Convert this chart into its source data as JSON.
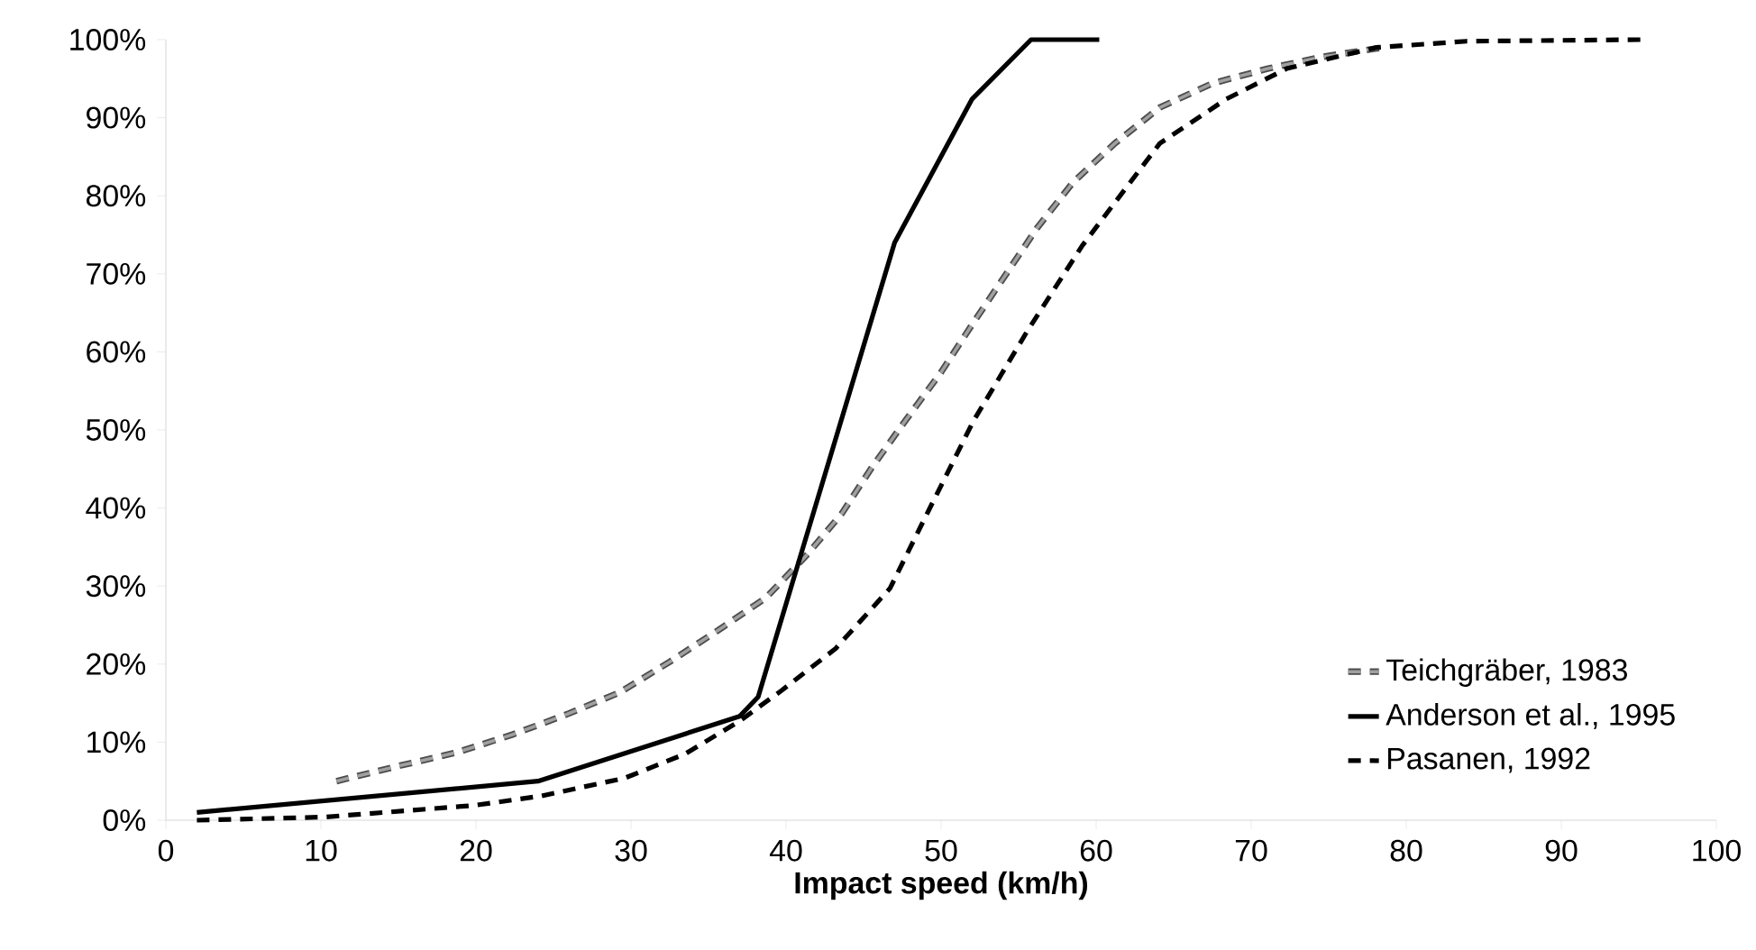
{
  "chart_data": {
    "type": "line",
    "xlabel": "Impact speed (km/h)",
    "xlim": [
      0,
      100
    ],
    "xticks": [
      0,
      10,
      20,
      30,
      40,
      50,
      60,
      70,
      80,
      90,
      100
    ],
    "ylim": [
      0,
      100
    ],
    "yticks": [
      {
        "value": 0,
        "label": "0%"
      },
      {
        "value": 10,
        "label": "10%"
      },
      {
        "value": 20,
        "label": "20%"
      },
      {
        "value": 30,
        "label": "30%"
      },
      {
        "value": 40,
        "label": "40%"
      },
      {
        "value": 50,
        "label": "50%"
      },
      {
        "value": 60,
        "label": "60%"
      },
      {
        "value": 70,
        "label": "70%"
      },
      {
        "value": 80,
        "label": "80%"
      },
      {
        "value": 90,
        "label": "90%"
      },
      {
        "value": 100,
        "label": "100%"
      }
    ],
    "grid": false,
    "legend": "bottom right",
    "marker": "none",
    "series": [
      {
        "name": "Teichgräber, 1983",
        "color": "#a0a0a0",
        "line_style": "dashed",
        "x": [
          11,
          14.9,
          18.8,
          22.4,
          25.9,
          29.3,
          32.5,
          35.6,
          38.7,
          41.3,
          43.6,
          45.5,
          47.7,
          50,
          51.9,
          54.1,
          56.2,
          58.5,
          61.2,
          64.1,
          67.5,
          71.1,
          74.6,
          78.5
        ],
        "values": [
          5,
          6.9,
          8.7,
          11,
          13.6,
          16.4,
          20.3,
          24.3,
          28.5,
          33.9,
          39.3,
          45.1,
          51.2,
          57.4,
          63.2,
          69.7,
          75.9,
          81.7,
          86.7,
          91.3,
          94.4,
          96.3,
          97.8,
          99
        ]
      },
      {
        "name": "Anderson et al., 1995",
        "color": "#000000",
        "line_style": "solid",
        "x": [
          2,
          24,
          37,
          38.2,
          47,
          52,
          55.8,
          60.2
        ],
        "values": [
          1,
          5,
          13.3,
          15.8,
          74,
          92.4,
          100,
          100
        ]
      },
      {
        "name": "Pasanen, 1992",
        "color": "#000000",
        "line_style": "dashed",
        "x": [
          2,
          10.2,
          19.9,
          24.2,
          29.6,
          33.5,
          37,
          39.7,
          43.2,
          46.7,
          49,
          52.1,
          55.6,
          59.1,
          64.1,
          68.4,
          72.3,
          78.1,
          83.9,
          95.2
        ],
        "values": [
          0,
          0.4,
          1.9,
          3.1,
          5.4,
          8.5,
          12.7,
          16.6,
          22,
          29.7,
          38.9,
          51.2,
          62.8,
          73.6,
          86.7,
          92.4,
          96.3,
          99,
          99.8,
          100
        ]
      }
    ]
  }
}
